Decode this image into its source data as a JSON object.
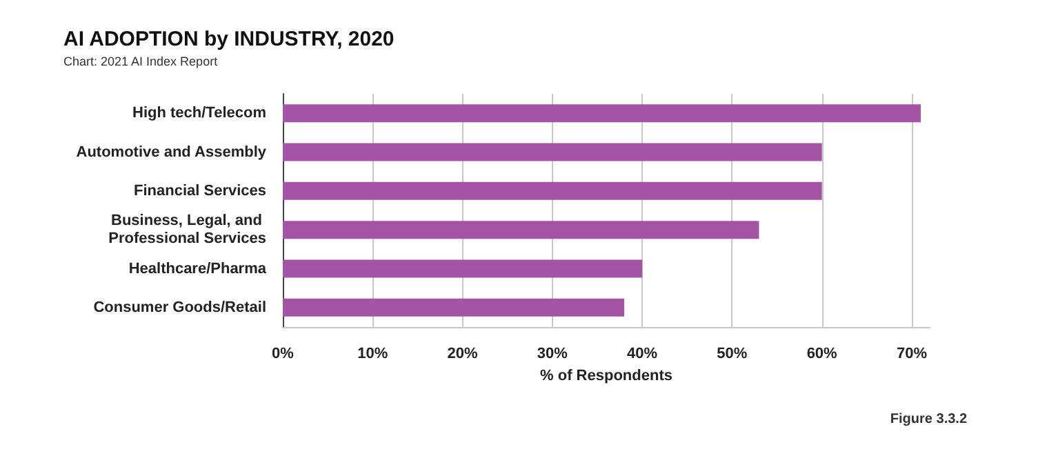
{
  "chart_data": {
    "type": "bar",
    "orientation": "horizontal",
    "title": "AI ADOPTION by INDUSTRY, 2020",
    "subtitle": "Chart: 2021 AI Index Report",
    "categories": [
      "High tech/Telecom",
      "Automotive and Assembly",
      "Financial Services",
      "Business, Legal, and Professional Services",
      "Healthcare/Pharma",
      "Consumer Goods/Retail"
    ],
    "values": [
      71,
      60,
      60,
      53,
      40,
      38
    ],
    "color": "#a553a5",
    "xlabel": "% of Respondents",
    "xlim": [
      0,
      72
    ],
    "xticks": [
      {
        "value": 0,
        "label": "0%"
      },
      {
        "value": 10,
        "label": "10%"
      },
      {
        "value": 20,
        "label": "20%"
      },
      {
        "value": 30,
        "label": "30%"
      },
      {
        "value": 40,
        "label": "40%"
      },
      {
        "value": 50,
        "label": "50%"
      },
      {
        "value": 60,
        "label": "60%"
      },
      {
        "value": 70,
        "label": "70%"
      }
    ],
    "grid": "x",
    "annotations": [
      "Figure 3.3.2"
    ]
  }
}
